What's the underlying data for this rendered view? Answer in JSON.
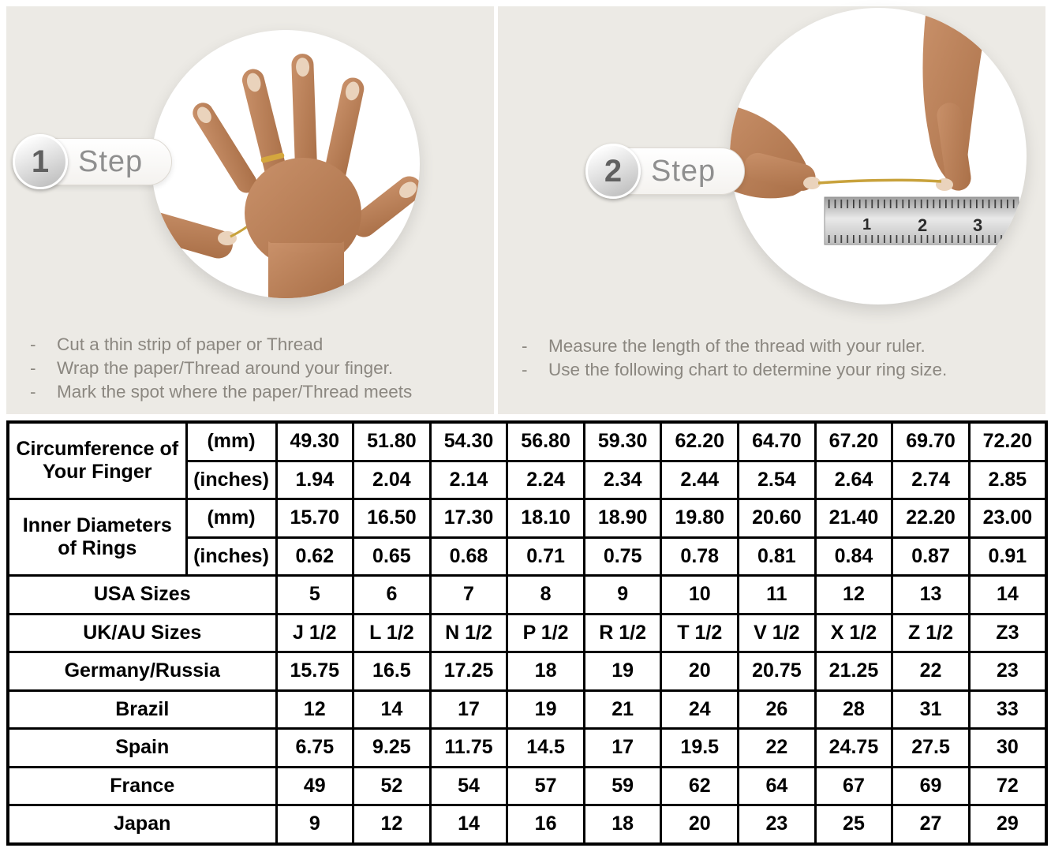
{
  "bullet_marker": "-",
  "colors": {
    "panel-bg": "#ECEAE5",
    "shaded": "#D9D9D9",
    "thread-gold": "#C8A23C",
    "skin-light": "#C9916A",
    "skin-dark": "#A96F47"
  },
  "steps": [
    {
      "number": "1",
      "label": "Step",
      "bullets": [
        "Cut a thin strip of paper or Thread",
        "Wrap the paper/Thread around your finger.",
        "Mark the spot where the paper/Thread meets"
      ]
    },
    {
      "number": "2",
      "label": "Step",
      "bullets": [
        "Measure the length of the thread with your ruler.",
        "Use the following chart to determine your ring size."
      ],
      "ruler_marks": [
        "1",
        "2",
        "3"
      ]
    }
  ],
  "table": {
    "sections": [
      {
        "label": "Circumference of Your Finger",
        "rows": [
          {
            "unit": "(mm)",
            "shaded": true,
            "values": [
              "49.30",
              "51.80",
              "54.30",
              "56.80",
              "59.30",
              "62.20",
              "64.70",
              "67.20",
              "69.70",
              "72.20"
            ]
          },
          {
            "unit": "(inches)",
            "shaded": false,
            "values": [
              "1.94",
              "2.04",
              "2.14",
              "2.24",
              "2.34",
              "2.44",
              "2.54",
              "2.64",
              "2.74",
              "2.85"
            ]
          }
        ]
      },
      {
        "label": "Inner Diameters of Rings",
        "rows": [
          {
            "unit": "(mm)",
            "shaded": false,
            "values": [
              "15.70",
              "16.50",
              "17.30",
              "18.10",
              "18.90",
              "19.80",
              "20.60",
              "21.40",
              "22.20",
              "23.00"
            ]
          },
          {
            "unit": "(inches)",
            "shaded": false,
            "values": [
              "0.62",
              "0.65",
              "0.68",
              "0.71",
              "0.75",
              "0.78",
              "0.81",
              "0.84",
              "0.87",
              "0.91"
            ]
          }
        ]
      }
    ],
    "rows": [
      {
        "label": "USA Sizes",
        "shaded": true,
        "values": [
          "5",
          "6",
          "7",
          "8",
          "9",
          "10",
          "11",
          "12",
          "13",
          "14"
        ]
      },
      {
        "label": "UK/AU Sizes",
        "shaded": false,
        "values": [
          "J 1/2",
          "L 1/2",
          "N 1/2",
          "P 1/2",
          "R 1/2",
          "T 1/2",
          "V 1/2",
          "X 1/2",
          "Z 1/2",
          "Z3"
        ]
      },
      {
        "label": "Germany/Russia",
        "shaded": false,
        "values": [
          "15.75",
          "16.5",
          "17.25",
          "18",
          "19",
          "20",
          "20.75",
          "21.25",
          "22",
          "23"
        ]
      },
      {
        "label": "Brazil",
        "shaded": false,
        "values": [
          "12",
          "14",
          "17",
          "19",
          "21",
          "24",
          "26",
          "28",
          "31",
          "33"
        ]
      },
      {
        "label": "Spain",
        "shaded": false,
        "values": [
          "6.75",
          "9.25",
          "11.75",
          "14.5",
          "17",
          "19.5",
          "22",
          "24.75",
          "27.5",
          "30"
        ]
      },
      {
        "label": "France",
        "shaded": false,
        "values": [
          "49",
          "52",
          "54",
          "57",
          "59",
          "62",
          "64",
          "67",
          "69",
          "72"
        ]
      },
      {
        "label": "Japan",
        "shaded": false,
        "values": [
          "9",
          "12",
          "14",
          "16",
          "18",
          "20",
          "23",
          "25",
          "27",
          "29"
        ]
      }
    ]
  }
}
